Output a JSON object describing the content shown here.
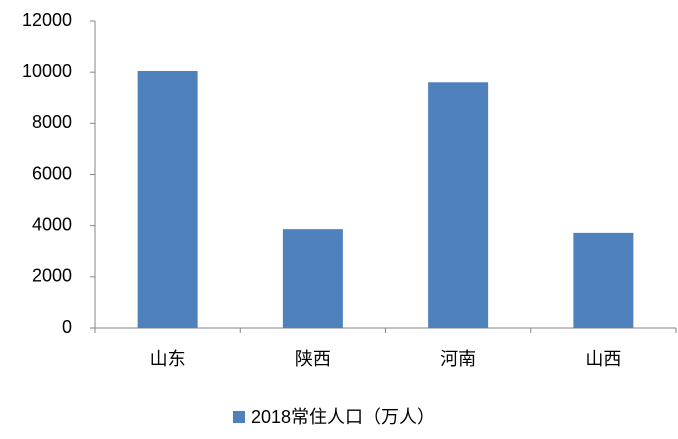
{
  "chart_data": {
    "type": "bar",
    "categories": [
      "山东",
      "陕西",
      "河南",
      "山西"
    ],
    "series": [
      {
        "name": "2018常住人口（万人）",
        "color": "#4f81bd",
        "values": [
          10047,
          3864,
          9605,
          3718
        ]
      }
    ],
    "ylim": [
      0,
      12000
    ],
    "yticks": [
      0,
      2000,
      4000,
      6000,
      8000,
      10000,
      12000
    ],
    "grid": false,
    "legend": "bottom"
  }
}
